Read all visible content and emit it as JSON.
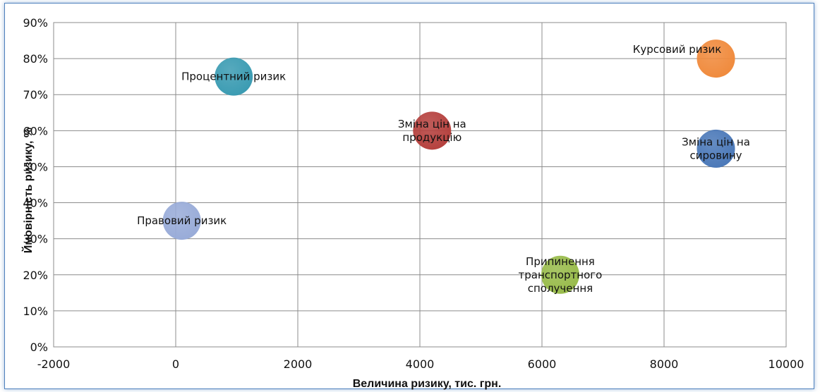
{
  "chart_data": {
    "type": "bubble",
    "xlabel": "Величина ризику, тис. грн.",
    "ylabel": "Ймовірність ризику, %",
    "xlim": [
      -2000,
      10000
    ],
    "ylim": [
      0,
      0.9
    ],
    "x_ticks": [
      -2000,
      0,
      2000,
      4000,
      6000,
      8000,
      10000
    ],
    "x_tick_labels": [
      "-2000",
      "0",
      "2000",
      "4000",
      "6000",
      "8000",
      "10000"
    ],
    "y_ticks": [
      0,
      0.1,
      0.2,
      0.3,
      0.4,
      0.5,
      0.6,
      0.7,
      0.8,
      0.9
    ],
    "y_tick_labels": [
      "0%",
      "10%",
      "20%",
      "30%",
      "40%",
      "50%",
      "60%",
      "70%",
      "80%",
      "90%"
    ],
    "grid": true,
    "points": [
      {
        "label": [
          "Процентний ризик"
        ],
        "x": 950,
        "y": 0.75,
        "color": "#3a9bb2",
        "label_pos": "center"
      },
      {
        "label": [
          "Зміна цін на",
          "продукцію"
        ],
        "x": 4200,
        "y": 0.6,
        "color": "#b5403d",
        "label_pos": "center"
      },
      {
        "label": [
          "Курсовий ризик"
        ],
        "x": 8850,
        "y": 0.8,
        "color": "#f08a3c",
        "label_pos": "above-left"
      },
      {
        "label": [
          "Зміна цін на",
          "сировину"
        ],
        "x": 8850,
        "y": 0.55,
        "color": "#4a78b8",
        "label_pos": "center"
      },
      {
        "label": [
          "Правовий ризик"
        ],
        "x": 100,
        "y": 0.35,
        "color": "#98abd8",
        "label_pos": "center"
      },
      {
        "label": [
          "Припинення",
          "транспортного",
          "сполучення"
        ],
        "x": 6300,
        "y": 0.2,
        "color": "#98bb4a",
        "label_pos": "center"
      }
    ]
  }
}
